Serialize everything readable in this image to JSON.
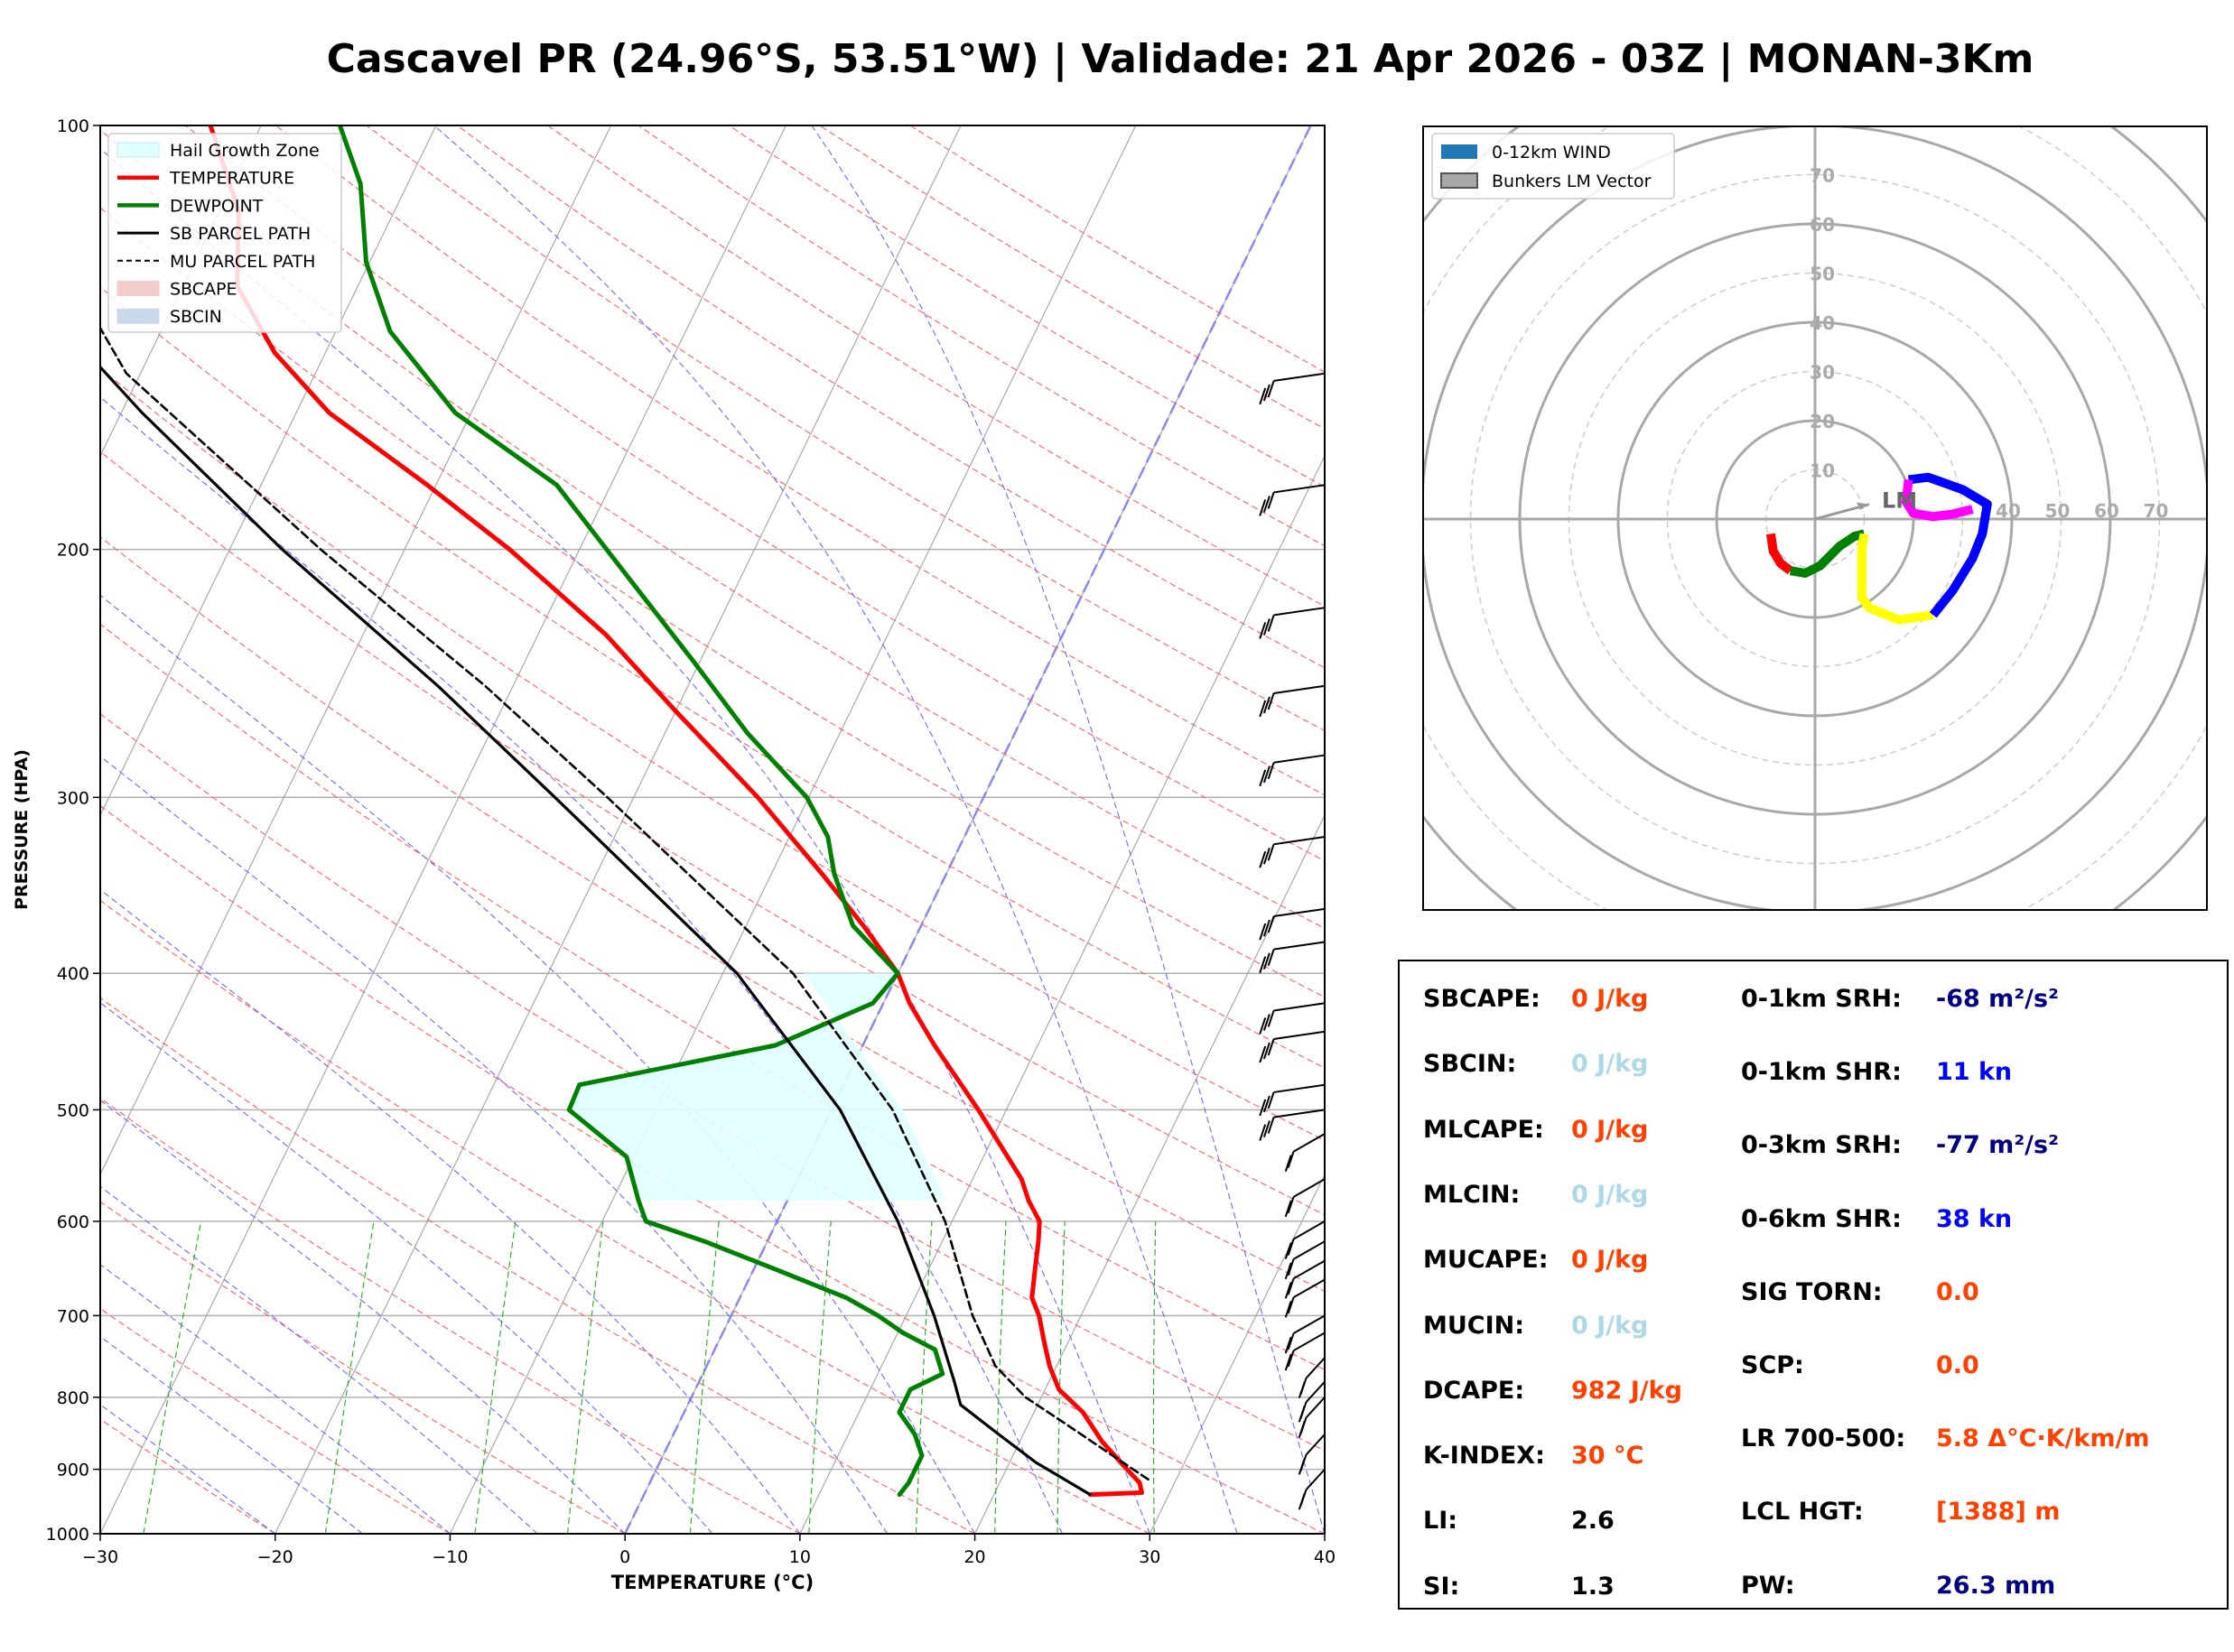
{
  "title": "Cascavel PR (24.96°S, 53.51°W) | Validade: 21 Apr 2026 - 03Z | MONAN-3Km",
  "skewt": {
    "xlabel": "TEMPERATURE (°C)",
    "ylabel": "PRESSURE (HPA)",
    "x_ticks": [
      "−30",
      "−20",
      "−10",
      "0",
      "10",
      "20",
      "30",
      "40"
    ],
    "y_ticks": [
      "100",
      "200",
      "300",
      "400",
      "500",
      "600",
      "700",
      "800",
      "900",
      "1000"
    ],
    "legend": [
      "Hail Growth Zone",
      "TEMPERATURE",
      "DEWPOINT",
      "SB PARCEL PATH",
      "MU PARCEL PATH",
      "SBCAPE",
      "SBCIN"
    ],
    "colors": {
      "temperature": "#ff0000",
      "dewpoint": "#008000",
      "sb_parcel": "#000000",
      "mu_parcel": "#000000",
      "hail_zone": "#e0ffff",
      "sbcape": "#f4cccc",
      "sbcin": "#c9d9ea"
    }
  },
  "chart_data": [
    {
      "type": "line",
      "chart": "skew-T log-P",
      "xlabel": "TEMPERATURE (°C)",
      "ylabel": "PRESSURE (HPA)",
      "xlim": [
        -30,
        40
      ],
      "ylim": [
        1000,
        100
      ],
      "y_scale": "log",
      "grid": true,
      "legend_position": "upper-left",
      "series": [
        {
          "name": "TEMPERATURE",
          "p": [
            938,
            935,
            920,
            900,
            860,
            820,
            790,
            760,
            730,
            700,
            680,
            650,
            620,
            600,
            580,
            560,
            500,
            450,
            420,
            400,
            370,
            340,
            300,
            260,
            230,
            200,
            180,
            160,
            145,
            130,
            115,
            100
          ],
          "t": [
            25.5,
            28.4,
            28.0,
            26.9,
            24.7,
            22.8,
            20.8,
            19.6,
            18.6,
            17.6,
            16.7,
            16.1,
            15.5,
            15.0,
            13.8,
            12.8,
            8.4,
            4.1,
            1.5,
            0.0,
            -3.3,
            -7.1,
            -12.9,
            -20.1,
            -26.1,
            -34.0,
            -40.5,
            -48.1,
            -52.9,
            -56.9,
            -58.9,
            -62.9
          ]
        },
        {
          "name": "DEWPOINT",
          "p": [
            938,
            920,
            880,
            850,
            820,
            790,
            770,
            740,
            720,
            700,
            680,
            650,
            620,
            600,
            580,
            540,
            500,
            480,
            450,
            420,
            400,
            370,
            340,
            320,
            300,
            270,
            240,
            210,
            180,
            160,
            140,
            125,
            110,
            100
          ],
          "t": [
            14.6,
            14.8,
            14.8,
            13.8,
            12.3,
            12.3,
            13.7,
            12.6,
            10.3,
            8.4,
            6.1,
            1.4,
            -3.6,
            -7.5,
            -8.5,
            -10.4,
            -15.0,
            -15.1,
            -5.0,
            -0.6,
            0.0,
            -3.9,
            -6.4,
            -7.8,
            -10.1,
            -15.3,
            -20.4,
            -26.3,
            -33.1,
            -40.9,
            -46.9,
            -50.2,
            -52.7,
            -55.5
          ]
        },
        {
          "name": "SB PARCEL PATH",
          "p": [
            938,
            890,
            850,
            810,
            780,
            700,
            600,
            500,
            400,
            300,
            250,
            200,
            160,
            130,
            100
          ],
          "t": [
            25.5,
            21.5,
            18.6,
            15.6,
            14.6,
            11.6,
            6.9,
            0.5,
            -9.2,
            -24.5,
            -34.3,
            -47.0,
            -58.8,
            -69.0,
            -79.6
          ]
        },
        {
          "name": "MU PARCEL PATH",
          "p": [
            915,
            880,
            840,
            800,
            760,
            700,
            600,
            500,
            400,
            300,
            250,
            200,
            150,
            120,
            100
          ],
          "t": [
            28.4,
            25.7,
            22.5,
            19.1,
            16.5,
            13.8,
            9.6,
            3.5,
            -6.0,
            -21.5,
            -31.6,
            -44.8,
            -60.8,
            -69.1,
            -73.8
          ]
        }
      ],
      "hail_growth_zone": {
        "label": "Hail Growth Zone",
        "temp_range": [
          -30,
          -10
        ]
      }
    },
    {
      "type": "line",
      "chart": "hodograph",
      "legend": [
        "0-12km WIND",
        "Bunkers LM Vector"
      ],
      "legend_position": "upper-left",
      "ring_labels": [
        "10",
        "20",
        "30",
        "40",
        "50",
        "60",
        "70"
      ],
      "grid": true,
      "storm_motion_label": "LM",
      "storm_motion_vector": {
        "u": 11,
        "v": 3
      },
      "segments": [
        {
          "color": "#ff0000",
          "u": [
            -9,
            -8.5,
            -7,
            -5
          ],
          "v": [
            -3,
            -6.5,
            -9,
            -10.5
          ]
        },
        {
          "color": "#008000",
          "u": [
            -5,
            -2,
            1,
            5,
            8,
            10
          ],
          "v": [
            -10.5,
            -11,
            -9.5,
            -5.5,
            -3.5,
            -3
          ]
        },
        {
          "color": "#ffff00",
          "u": [
            10,
            9.5,
            9.5,
            11,
            17,
            24
          ],
          "v": [
            -3,
            -6,
            -16,
            -18,
            -20.5,
            -19.5
          ]
        },
        {
          "color": "#0000ff",
          "u": [
            24,
            28,
            32,
            34,
            35,
            30,
            23,
            19
          ],
          "v": [
            -19.5,
            -14.5,
            -8,
            -3,
            3,
            6,
            8.5,
            8
          ]
        },
        {
          "color": "#ff00ff",
          "u": [
            19,
            18.5,
            20,
            24,
            28,
            32
          ],
          "v": [
            8,
            3.5,
            1.2,
            0.5,
            1,
            2
          ]
        }
      ]
    }
  ],
  "stats": {
    "left": [
      {
        "label": "SBCAPE:",
        "value": "0 J/kg",
        "color": "#ff4000"
      },
      {
        "label": "SBCIN:",
        "value": "0 J/kg",
        "color": "#add8e6"
      },
      {
        "label": "MLCAPE:",
        "value": "0 J/kg",
        "color": "#ff4000"
      },
      {
        "label": "MLCIN:",
        "value": "0 J/kg",
        "color": "#add8e6"
      },
      {
        "label": "MUCAPE:",
        "value": "0 J/kg",
        "color": "#ff4000"
      },
      {
        "label": "MUCIN:",
        "value": "0 J/kg",
        "color": "#add8e6"
      },
      {
        "label": "DCAPE:",
        "value": "982 J/kg",
        "color": "#ff4000"
      },
      {
        "label": "K-INDEX:",
        "value": "30 °C",
        "color": "#ff4000"
      },
      {
        "label": "LI:",
        "value": "2.6",
        "color": "#000000"
      },
      {
        "label": "SI:",
        "value": "1.3",
        "color": "#000000"
      }
    ],
    "right": [
      {
        "label": "0-1km SRH:",
        "value": "-68 m²/s²",
        "color": "#000080"
      },
      {
        "label": "0-1km SHR:",
        "value": "11 kn",
        "color": "#0000ff"
      },
      {
        "label": "0-3km SRH:",
        "value": "-77 m²/s²",
        "color": "#000080"
      },
      {
        "label": "0-6km SHR:",
        "value": "38 kn",
        "color": "#0000ff"
      },
      {
        "label": "SIG TORN:",
        "value": "0.0",
        "color": "#ff4000"
      },
      {
        "label": "SCP:",
        "value": "0.0",
        "color": "#ff4000"
      },
      {
        "label": "LR 700-500:",
        "value": "5.8 Δ°C·K/km/m",
        "color": "#ff4000"
      },
      {
        "label": "LCL HGT:",
        "value": "[1388] m",
        "color": "#ff4000"
      },
      {
        "label": "PW:",
        "value": "26.3 mm",
        "color": "#000080"
      }
    ]
  }
}
